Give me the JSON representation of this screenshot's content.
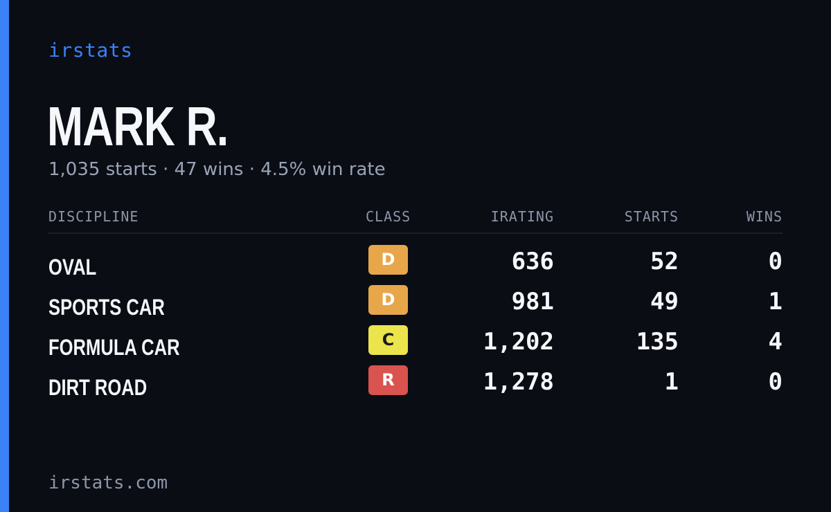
{
  "brand": "irstats",
  "driver": {
    "name": "MARK R.",
    "summary": "1,035 starts · 47 wins · 4.5% win rate"
  },
  "table": {
    "headers": {
      "discipline": "DISCIPLINE",
      "class": "CLASS",
      "irating": "IRATING",
      "starts": "STARTS",
      "wins": "WINS"
    },
    "rows": [
      {
        "discipline": "OVAL",
        "class": "D",
        "class_color": "#e8a64a",
        "irating": "636",
        "starts": "52",
        "wins": "0"
      },
      {
        "discipline": "SPORTS CAR",
        "class": "D",
        "class_color": "#e8a64a",
        "irating": "981",
        "starts": "49",
        "wins": "1"
      },
      {
        "discipline": "FORMULA CAR",
        "class": "C",
        "class_color": "#ece44c",
        "irating": "1,202",
        "starts": "135",
        "wins": "4"
      },
      {
        "discipline": "DIRT ROAD",
        "class": "R",
        "class_color": "#d9534f",
        "irating": "1,278",
        "starts": "1",
        "wins": "0"
      }
    ]
  },
  "footer": "irstats.com",
  "colors": {
    "accent": "#3b82f6",
    "background": "#0a0d14"
  }
}
